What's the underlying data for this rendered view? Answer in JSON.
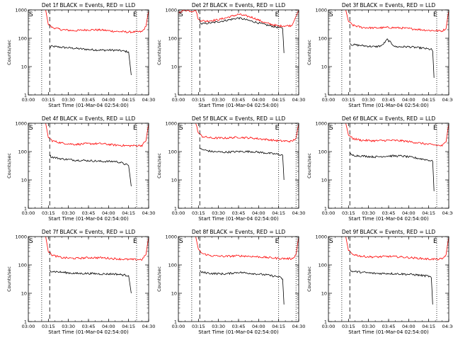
{
  "chart_data": [
    {
      "type": "line",
      "title": "Det 1f BLACK = Events, RED = LLD",
      "xlabel": "Start Time (01-Mar-04 02:54:00)",
      "ylabel": "Counts/sec",
      "yscale": "log",
      "ylim": [
        1,
        1000
      ],
      "xlim": [
        "03:00",
        "04:30"
      ],
      "x_ticks": [
        "03:00",
        "03:15",
        "03:30",
        "03:45",
        "04:00",
        "04:15",
        "04:30"
      ],
      "y_ticks": [
        "1",
        "10",
        "100",
        "1000"
      ],
      "markers": [
        "S",
        "E"
      ],
      "dotted_lines": [
        "03:10",
        "04:21"
      ],
      "dashed_lines": [
        "03:16"
      ],
      "series": [
        {
          "name": "Events",
          "color": "#000000",
          "x": [
            "03:16",
            "03:17",
            "03:25",
            "03:35",
            "03:45",
            "03:55",
            "04:05",
            "04:10",
            "04:15",
            "04:17"
          ],
          "y": [
            45,
            52,
            48,
            44,
            40,
            38,
            38,
            36,
            33,
            5
          ]
        },
        {
          "name": "LLD",
          "color": "#ff0000",
          "x": [
            "03:13",
            "03:15",
            "03:18",
            "03:25",
            "03:35",
            "03:45",
            "03:55",
            "04:05",
            "04:15",
            "04:25",
            "04:28",
            "04:30"
          ],
          "y": [
            1000,
            300,
            240,
            200,
            185,
            200,
            195,
            175,
            165,
            170,
            260,
            1000
          ]
        }
      ]
    },
    {
      "type": "line",
      "title": "Det 2f BLACK = Events, RED = LLD",
      "xlabel": "Start Time (01-Mar-04 02:54:00)",
      "ylabel": "Counts/sec",
      "yscale": "log",
      "ylim": [
        1,
        1000
      ],
      "xlim": [
        "03:00",
        "04:30"
      ],
      "x_ticks": [
        "03:00",
        "03:15",
        "03:30",
        "03:45",
        "04:00",
        "04:15",
        "04:30"
      ],
      "y_ticks": [
        "1",
        "10",
        "100",
        "1000"
      ],
      "markers": [
        "S",
        "E"
      ],
      "dotted_lines": [
        "03:10",
        "04:15",
        "04:28"
      ],
      "dashed_lines": [
        "03:16"
      ],
      "series": [
        {
          "name": "Events",
          "color": "#000000",
          "x": [
            "03:16",
            "03:17",
            "03:25",
            "03:35",
            "03:45",
            "03:55",
            "04:05",
            "04:15",
            "04:18",
            "04:19"
          ],
          "y": [
            400,
            320,
            350,
            420,
            520,
            400,
            300,
            240,
            220,
            30
          ]
        },
        {
          "name": "LLD",
          "color": "#ff0000",
          "x": [
            "03:00",
            "03:05",
            "03:10",
            "03:13",
            "03:15",
            "03:20",
            "03:30",
            "03:40",
            "03:45",
            "03:55",
            "04:05",
            "04:15",
            "04:25",
            "04:30"
          ],
          "y": [
            800,
            1000,
            900,
            1000,
            450,
            400,
            450,
            600,
            700,
            550,
            350,
            270,
            280,
            1000
          ]
        }
      ]
    },
    {
      "type": "line",
      "title": "Det 3f BLACK = Events, RED = LLD",
      "xlabel": "Start Time (01-Mar-04 02:54:00)",
      "ylabel": "Counts/sec",
      "yscale": "log",
      "ylim": [
        1,
        1000
      ],
      "xlim": [
        "03:00",
        "04:30"
      ],
      "x_ticks": [
        "03:00",
        "03:15",
        "03:30",
        "03:45",
        "04:00",
        "04:15",
        "04:30"
      ],
      "y_ticks": [
        "1",
        "10",
        "100",
        "1000"
      ],
      "markers": [
        "S",
        "E"
      ],
      "dotted_lines": [
        "03:10",
        "04:21"
      ],
      "dashed_lines": [
        "03:16"
      ],
      "series": [
        {
          "name": "Events",
          "color": "#000000",
          "x": [
            "03:16",
            "03:17",
            "03:25",
            "03:35",
            "03:40",
            "03:44",
            "03:50",
            "04:00",
            "04:10",
            "04:17",
            "04:18",
            "04:19"
          ],
          "y": [
            70,
            60,
            55,
            50,
            55,
            90,
            50,
            50,
            45,
            40,
            35,
            4
          ]
        },
        {
          "name": "LLD",
          "color": "#ff0000",
          "x": [
            "03:13",
            "03:15",
            "03:18",
            "03:25",
            "03:35",
            "03:45",
            "03:55",
            "04:05",
            "04:15",
            "04:25",
            "04:28",
            "04:30"
          ],
          "y": [
            1000,
            400,
            290,
            240,
            230,
            240,
            230,
            210,
            190,
            180,
            220,
            1000
          ]
        }
      ]
    },
    {
      "type": "line",
      "title": "Det 4f BLACK = Events, RED = LLD",
      "xlabel": "Start Time (01-Mar-04 02:54:00)",
      "ylabel": "Counts/sec",
      "yscale": "log",
      "ylim": [
        1,
        1000
      ],
      "xlim": [
        "03:00",
        "04:30"
      ],
      "x_ticks": [
        "03:00",
        "03:15",
        "03:30",
        "03:45",
        "04:00",
        "04:15",
        "04:30"
      ],
      "y_ticks": [
        "1",
        "10",
        "100",
        "1000"
      ],
      "markers": [
        "S",
        "E"
      ],
      "dotted_lines": [
        "03:10",
        "04:21"
      ],
      "dashed_lines": [
        "03:16"
      ],
      "series": [
        {
          "name": "Events",
          "color": "#000000",
          "x": [
            "03:16",
            "03:17",
            "03:25",
            "03:35",
            "03:45",
            "03:55",
            "04:05",
            "04:10",
            "04:15",
            "04:17"
          ],
          "y": [
            75,
            65,
            55,
            50,
            48,
            45,
            45,
            40,
            32,
            6
          ]
        },
        {
          "name": "LLD",
          "color": "#ff0000",
          "x": [
            "03:13",
            "03:15",
            "03:18",
            "03:25",
            "03:35",
            "03:45",
            "03:55",
            "04:05",
            "04:15",
            "04:25",
            "04:28",
            "04:30"
          ],
          "y": [
            1000,
            320,
            240,
            200,
            180,
            190,
            190,
            170,
            160,
            165,
            240,
            1000
          ]
        }
      ]
    },
    {
      "type": "line",
      "title": "Det 5f BLACK = Events, RED = LLD",
      "xlabel": "Start Time (01-Mar-04 02:54:00)",
      "ylabel": "Counts/sec",
      "yscale": "log",
      "ylim": [
        1,
        1000
      ],
      "xlim": [
        "03:00",
        "04:30"
      ],
      "x_ticks": [
        "03:00",
        "03:15",
        "03:30",
        "03:45",
        "04:00",
        "04:15",
        "04:30"
      ],
      "y_ticks": [
        "1",
        "10",
        "100",
        "1000"
      ],
      "markers": [
        "S",
        "E"
      ],
      "dotted_lines": [
        "03:10",
        "04:15",
        "04:28"
      ],
      "dashed_lines": [
        "03:16"
      ],
      "series": [
        {
          "name": "Events",
          "color": "#000000",
          "x": [
            "03:16",
            "03:17",
            "03:25",
            "03:35",
            "03:45",
            "03:55",
            "04:05",
            "04:15",
            "04:18",
            "04:19"
          ],
          "y": [
            140,
            120,
            100,
            95,
            100,
            100,
            90,
            80,
            75,
            10
          ]
        },
        {
          "name": "LLD",
          "color": "#ff0000",
          "x": [
            "03:13",
            "03:15",
            "03:18",
            "03:25",
            "03:35",
            "03:45",
            "03:55",
            "04:05",
            "04:15",
            "04:25",
            "04:28",
            "04:30"
          ],
          "y": [
            1000,
            450,
            340,
            300,
            300,
            320,
            300,
            270,
            240,
            230,
            300,
            1000
          ]
        }
      ]
    },
    {
      "type": "line",
      "title": "Det 6f BLACK = Events, RED = LLD",
      "xlabel": "Start Time (01-Mar-04 02:54:00)",
      "ylabel": "Counts/sec",
      "yscale": "log",
      "ylim": [
        1,
        1000
      ],
      "xlim": [
        "03:00",
        "04:30"
      ],
      "x_ticks": [
        "03:00",
        "03:15",
        "03:30",
        "03:45",
        "04:00",
        "04:15",
        "04:30"
      ],
      "y_ticks": [
        "1",
        "10",
        "100",
        "1000"
      ],
      "markers": [
        "S",
        "E"
      ],
      "dotted_lines": [
        "03:10",
        "04:21"
      ],
      "dashed_lines": [
        "03:16"
      ],
      "series": [
        {
          "name": "Events",
          "color": "#000000",
          "x": [
            "03:16",
            "03:17",
            "03:25",
            "03:35",
            "03:45",
            "03:55",
            "04:05",
            "04:15",
            "04:18",
            "04:19"
          ],
          "y": [
            90,
            75,
            70,
            65,
            70,
            70,
            60,
            50,
            45,
            4
          ]
        },
        {
          "name": "LLD",
          "color": "#ff0000",
          "x": [
            "03:13",
            "03:15",
            "03:18",
            "03:25",
            "03:35",
            "03:45",
            "03:55",
            "04:05",
            "04:15",
            "04:25",
            "04:28",
            "04:30"
          ],
          "y": [
            1000,
            400,
            290,
            250,
            240,
            250,
            240,
            210,
            180,
            160,
            220,
            1000
          ]
        }
      ]
    },
    {
      "type": "line",
      "title": "Det 7f BLACK = Events, RED = LLD",
      "xlabel": "Start Time (01-Mar-04 02:54:00)",
      "ylabel": "Counts/sec",
      "yscale": "log",
      "ylim": [
        1,
        1000
      ],
      "xlim": [
        "03:00",
        "04:30"
      ],
      "x_ticks": [
        "03:00",
        "03:15",
        "03:30",
        "03:45",
        "04:00",
        "04:15",
        "04:30"
      ],
      "y_ticks": [
        "1",
        "10",
        "100",
        "1000"
      ],
      "markers": [
        "S",
        "E"
      ],
      "dotted_lines": [
        "03:10",
        "04:21"
      ],
      "dashed_lines": [
        "03:16"
      ],
      "series": [
        {
          "name": "Events",
          "color": "#000000",
          "x": [
            "03:16",
            "03:17",
            "03:25",
            "03:35",
            "03:45",
            "03:55",
            "04:05",
            "04:10",
            "04:15",
            "04:17"
          ],
          "y": [
            70,
            60,
            55,
            50,
            50,
            48,
            48,
            45,
            42,
            10
          ]
        },
        {
          "name": "LLD",
          "color": "#ff0000",
          "x": [
            "03:13",
            "03:15",
            "03:18",
            "03:25",
            "03:35",
            "03:45",
            "03:55",
            "04:05",
            "04:15",
            "04:25",
            "04:28",
            "04:30"
          ],
          "y": [
            1000,
            300,
            220,
            180,
            170,
            180,
            180,
            165,
            155,
            155,
            230,
            1000
          ]
        }
      ]
    },
    {
      "type": "line",
      "title": "Det 8f BLACK = Events, RED = LLD",
      "xlabel": "Start Time (01-Mar-04 02:54:00)",
      "ylabel": "Counts/sec",
      "yscale": "log",
      "ylim": [
        1,
        1000
      ],
      "xlim": [
        "03:00",
        "04:30"
      ],
      "x_ticks": [
        "03:00",
        "03:15",
        "03:30",
        "03:45",
        "04:00",
        "04:15",
        "04:30"
      ],
      "y_ticks": [
        "1",
        "10",
        "100",
        "1000"
      ],
      "markers": [
        "S",
        "E"
      ],
      "dotted_lines": [
        "03:10",
        "04:15",
        "04:28"
      ],
      "dashed_lines": [
        "03:16"
      ],
      "series": [
        {
          "name": "Events",
          "color": "#000000",
          "x": [
            "03:16",
            "03:17",
            "03:25",
            "03:35",
            "03:45",
            "03:55",
            "04:05",
            "04:15",
            "04:18",
            "04:19"
          ],
          "y": [
            65,
            55,
            50,
            48,
            55,
            50,
            45,
            38,
            32,
            4
          ]
        },
        {
          "name": "LLD",
          "color": "#ff0000",
          "x": [
            "03:13",
            "03:15",
            "03:18",
            "03:25",
            "03:35",
            "03:45",
            "03:55",
            "04:05",
            "04:15",
            "04:25",
            "04:28",
            "04:30"
          ],
          "y": [
            1000,
            350,
            250,
            210,
            200,
            210,
            200,
            185,
            170,
            165,
            230,
            1000
          ]
        }
      ]
    },
    {
      "type": "line",
      "title": "Det 9f BLACK = Events, RED = LLD",
      "xlabel": "Start Time (01-Mar-04 02:54:00)",
      "ylabel": "Counts/sec",
      "yscale": "log",
      "ylim": [
        1,
        1000
      ],
      "xlim": [
        "03:00",
        "04:30"
      ],
      "x_ticks": [
        "03:00",
        "03:15",
        "03:30",
        "03:45",
        "04:00",
        "04:15",
        "04:30"
      ],
      "y_ticks": [
        "1",
        "10",
        "100",
        "1000"
      ],
      "markers": [
        "S",
        "E"
      ],
      "dotted_lines": [
        "03:10",
        "04:21"
      ],
      "dashed_lines": [
        "03:16"
      ],
      "series": [
        {
          "name": "Events",
          "color": "#000000",
          "x": [
            "03:16",
            "03:17",
            "03:25",
            "03:35",
            "03:45",
            "03:55",
            "04:05",
            "04:15",
            "04:17",
            "04:18"
          ],
          "y": [
            70,
            60,
            55,
            50,
            50,
            48,
            45,
            40,
            35,
            4
          ]
        },
        {
          "name": "LLD",
          "color": "#ff0000",
          "x": [
            "03:13",
            "03:15",
            "03:18",
            "03:25",
            "03:35",
            "03:45",
            "03:55",
            "04:05",
            "04:15",
            "04:25",
            "04:28",
            "04:30"
          ],
          "y": [
            1000,
            320,
            240,
            200,
            190,
            200,
            190,
            175,
            160,
            160,
            230,
            1000
          ]
        }
      ]
    }
  ]
}
